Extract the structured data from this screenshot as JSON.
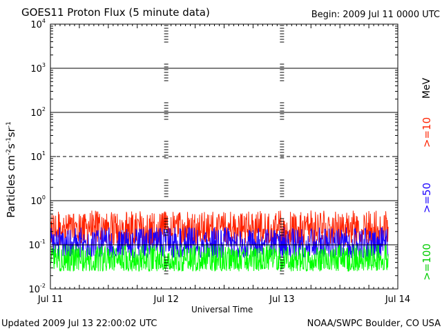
{
  "header": {
    "title": "GOES11 Proton Flux (5 minute data)",
    "begin": "Begin: 2009 Jul 11 0000 UTC"
  },
  "footer": {
    "updated": "Updated 2009 Jul 13 22:00:02 UTC",
    "credit": "NOAA/SWPC Boulder, CO USA"
  },
  "colors": {
    "ge10": "#ff2200",
    "ge50": "#1a00ff",
    "ge100": "#00ff00",
    "axis": "#000000"
  },
  "chart_data": {
    "type": "line",
    "title": "GOES11 Proton Flux (5 minute data)",
    "xlabel": "Universal Time",
    "ylabel": "Particles cm⁻²s⁻¹sr⁻¹",
    "yscale": "log",
    "ylim": [
      0.01,
      10000
    ],
    "xlim": [
      "2009-07-11T00:00",
      "2009-07-14T00:00"
    ],
    "x_ticks": [
      "Jul 11",
      "Jul 12",
      "Jul 13",
      "Jul 14"
    ],
    "y_ticks": [
      {
        "base": "10",
        "exp": "-2"
      },
      {
        "base": "10",
        "exp": "-1"
      },
      {
        "base": "10",
        "exp": "0"
      },
      {
        "base": "10",
        "exp": "1"
      },
      {
        "base": "10",
        "exp": "2"
      },
      {
        "base": "10",
        "exp": "3"
      },
      {
        "base": "10",
        "exp": "4"
      }
    ],
    "reference_levels": [
      {
        "value": 1000,
        "style": "solid"
      },
      {
        "value": 100,
        "style": "solid"
      },
      {
        "value": 10,
        "style": "dashed"
      },
      {
        "value": 1,
        "style": "solid"
      },
      {
        "value": 0.1,
        "style": "solid"
      }
    ],
    "legend_unit": "MeV",
    "legend_position": "right",
    "grid": false,
    "data_end": "2009-07-13T22:00",
    "series": [
      {
        "name": ">=10",
        "color": "#ff2200",
        "baseline": 0.22,
        "spread": 0.5,
        "min": 0.1,
        "max": 0.6
      },
      {
        "name": ">=50",
        "color": "#1a00ff",
        "baseline": 0.1,
        "spread": 0.45,
        "min": 0.05,
        "max": 0.25
      },
      {
        "name": ">=100",
        "color": "#00ff00",
        "baseline": 0.045,
        "spread": 0.45,
        "min": 0.025,
        "max": 0.1
      }
    ]
  }
}
